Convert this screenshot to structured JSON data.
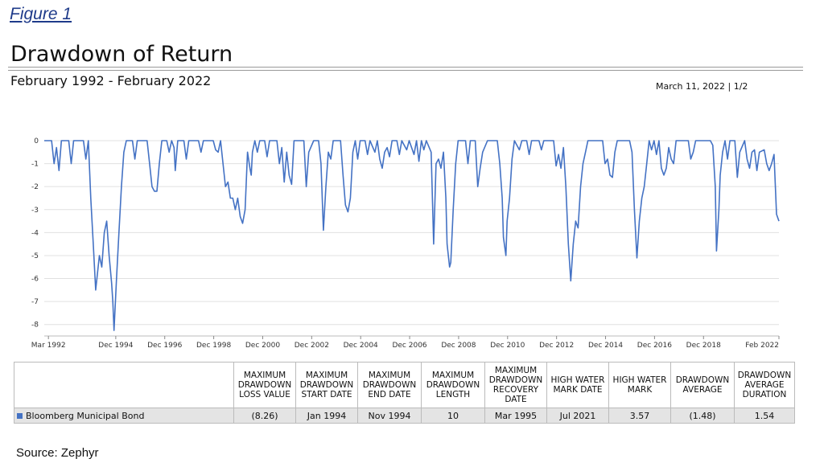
{
  "figure_label": "Figure 1",
  "title": "Drawdown of Return",
  "subtitle": "February 1992 - February 2022",
  "report_date": "March 11, 2022 | 1/2",
  "source": "Source: Zephyr",
  "colors": {
    "series": "#4472c4",
    "grid": "#e0e0e0"
  },
  "chart_data": {
    "type": "line",
    "title": "Drawdown of Return",
    "subtitle": "February 1992 - February 2022",
    "xlabel": "",
    "ylabel": "",
    "xlim": [
      1992.0,
      2022.0
    ],
    "ylim": [
      -8.5,
      0
    ],
    "y_ticks": [
      0,
      -1,
      -2,
      -3,
      -4,
      -5,
      -6,
      -7,
      -8
    ],
    "x_tick_labels": [
      {
        "x": 1992.17,
        "label": "Mar 1992"
      },
      {
        "x": 1994.92,
        "label": "Dec 1994"
      },
      {
        "x": 1996.92,
        "label": "Dec 1996"
      },
      {
        "x": 1998.92,
        "label": "Dec 1998"
      },
      {
        "x": 2000.92,
        "label": "Dec 2000"
      },
      {
        "x": 2002.92,
        "label": "Dec 2002"
      },
      {
        "x": 2004.92,
        "label": "Dec 2004"
      },
      {
        "x": 2006.92,
        "label": "Dec 2006"
      },
      {
        "x": 2008.92,
        "label": "Dec 2008"
      },
      {
        "x": 2010.92,
        "label": "Dec 2010"
      },
      {
        "x": 2012.92,
        "label": "Dec 2012"
      },
      {
        "x": 2014.92,
        "label": "Dec 2014"
      },
      {
        "x": 2016.92,
        "label": "Dec 2016"
      },
      {
        "x": 2018.92,
        "label": "Dec 2018"
      },
      {
        "x": 2022.0,
        "label": "Feb 2022"
      }
    ],
    "grid": true,
    "series": [
      {
        "name": "Bloomberg Municipal Bond",
        "points": [
          [
            1992.0,
            0
          ],
          [
            1992.3,
            0
          ],
          [
            1992.4,
            -1.0
          ],
          [
            1992.5,
            -0.3
          ],
          [
            1992.6,
            -1.3
          ],
          [
            1992.7,
            0
          ],
          [
            1993.0,
            0
          ],
          [
            1993.1,
            -1.0
          ],
          [
            1993.2,
            0
          ],
          [
            1993.6,
            0
          ],
          [
            1993.7,
            -0.8
          ],
          [
            1993.8,
            0
          ],
          [
            1993.9,
            -2.5
          ],
          [
            1994.0,
            -4.5
          ],
          [
            1994.1,
            -6.5
          ],
          [
            1994.25,
            -5.0
          ],
          [
            1994.35,
            -5.5
          ],
          [
            1994.45,
            -4.0
          ],
          [
            1994.55,
            -3.5
          ],
          [
            1994.65,
            -5.0
          ],
          [
            1994.75,
            -6.2
          ],
          [
            1994.8,
            -7.0
          ],
          [
            1994.85,
            -8.26
          ],
          [
            1994.95,
            -6.0
          ],
          [
            1995.05,
            -4.0
          ],
          [
            1995.15,
            -2.0
          ],
          [
            1995.25,
            -0.5
          ],
          [
            1995.35,
            0
          ],
          [
            1995.6,
            0
          ],
          [
            1995.7,
            -0.8
          ],
          [
            1995.8,
            0
          ],
          [
            1996.2,
            0
          ],
          [
            1996.3,
            -1.0
          ],
          [
            1996.4,
            -2.0
          ],
          [
            1996.5,
            -2.2
          ],
          [
            1996.6,
            -2.2
          ],
          [
            1996.7,
            -1.0
          ],
          [
            1996.8,
            0
          ],
          [
            1997.0,
            0
          ],
          [
            1997.1,
            -0.5
          ],
          [
            1997.2,
            0
          ],
          [
            1997.3,
            -0.3
          ],
          [
            1997.35,
            -1.3
          ],
          [
            1997.45,
            0
          ],
          [
            1997.7,
            0
          ],
          [
            1997.8,
            -0.8
          ],
          [
            1997.9,
            0
          ],
          [
            1998.3,
            0
          ],
          [
            1998.4,
            -0.5
          ],
          [
            1998.5,
            0
          ],
          [
            1998.9,
            0
          ],
          [
            1999.0,
            -0.4
          ],
          [
            1999.1,
            -0.5
          ],
          [
            1999.2,
            0
          ],
          [
            1999.4,
            -2.0
          ],
          [
            1999.5,
            -1.8
          ],
          [
            1999.6,
            -2.5
          ],
          [
            1999.7,
            -2.5
          ],
          [
            1999.8,
            -3.0
          ],
          [
            1999.9,
            -2.5
          ],
          [
            2000.0,
            -3.3
          ],
          [
            2000.1,
            -3.6
          ],
          [
            2000.2,
            -3.0
          ],
          [
            2000.3,
            -0.5
          ],
          [
            2000.4,
            -1.2
          ],
          [
            2000.45,
            -1.5
          ],
          [
            2000.5,
            -0.5
          ],
          [
            2000.6,
            0
          ],
          [
            2000.7,
            -0.5
          ],
          [
            2000.8,
            0
          ],
          [
            2001.0,
            0
          ],
          [
            2001.1,
            -0.7
          ],
          [
            2001.2,
            0
          ],
          [
            2001.5,
            0
          ],
          [
            2001.6,
            -1.0
          ],
          [
            2001.7,
            -0.3
          ],
          [
            2001.8,
            -1.8
          ],
          [
            2001.9,
            -0.5
          ],
          [
            2002.0,
            -1.5
          ],
          [
            2002.1,
            -1.9
          ],
          [
            2002.2,
            0
          ],
          [
            2002.6,
            0
          ],
          [
            2002.7,
            -2.0
          ],
          [
            2002.8,
            -0.5
          ],
          [
            2003.0,
            0
          ],
          [
            2003.2,
            0
          ],
          [
            2003.3,
            -1.0
          ],
          [
            2003.4,
            -3.9
          ],
          [
            2003.5,
            -2.0
          ],
          [
            2003.6,
            -0.5
          ],
          [
            2003.7,
            -0.8
          ],
          [
            2003.8,
            0
          ],
          [
            2004.1,
            0
          ],
          [
            2004.2,
            -1.5
          ],
          [
            2004.3,
            -2.8
          ],
          [
            2004.4,
            -3.1
          ],
          [
            2004.5,
            -2.5
          ],
          [
            2004.6,
            -0.5
          ],
          [
            2004.7,
            0
          ],
          [
            2004.8,
            -0.8
          ],
          [
            2004.9,
            0
          ],
          [
            2005.1,
            0
          ],
          [
            2005.2,
            -0.6
          ],
          [
            2005.3,
            0
          ],
          [
            2005.5,
            -0.5
          ],
          [
            2005.6,
            0
          ],
          [
            2005.7,
            -0.8
          ],
          [
            2005.8,
            -1.2
          ],
          [
            2005.9,
            -0.5
          ],
          [
            2006.0,
            -0.3
          ],
          [
            2006.1,
            -0.7
          ],
          [
            2006.2,
            0
          ],
          [
            2006.4,
            0
          ],
          [
            2006.5,
            -0.6
          ],
          [
            2006.6,
            0
          ],
          [
            2006.8,
            -0.4
          ],
          [
            2006.9,
            0
          ],
          [
            2007.1,
            -0.6
          ],
          [
            2007.2,
            0
          ],
          [
            2007.3,
            -0.9
          ],
          [
            2007.4,
            0
          ],
          [
            2007.5,
            -0.4
          ],
          [
            2007.6,
            0
          ],
          [
            2007.8,
            -0.5
          ],
          [
            2007.9,
            -4.5
          ],
          [
            2008.0,
            -1.0
          ],
          [
            2008.1,
            -0.8
          ],
          [
            2008.2,
            -1.2
          ],
          [
            2008.3,
            -0.5
          ],
          [
            2008.4,
            -2.5
          ],
          [
            2008.45,
            -4.5
          ],
          [
            2008.55,
            -5.5
          ],
          [
            2008.6,
            -5.3
          ],
          [
            2008.7,
            -3.0
          ],
          [
            2008.8,
            -1.0
          ],
          [
            2008.9,
            0
          ],
          [
            2009.2,
            0
          ],
          [
            2009.3,
            -1.0
          ],
          [
            2009.4,
            0
          ],
          [
            2009.6,
            0
          ],
          [
            2009.7,
            -2.0
          ],
          [
            2009.8,
            -1.2
          ],
          [
            2009.9,
            -0.5
          ],
          [
            2010.1,
            0
          ],
          [
            2010.5,
            0
          ],
          [
            2010.6,
            -1.0
          ],
          [
            2010.7,
            -2.5
          ],
          [
            2010.75,
            -4.2
          ],
          [
            2010.85,
            -5.0
          ],
          [
            2010.9,
            -3.5
          ],
          [
            2011.0,
            -2.5
          ],
          [
            2011.1,
            -0.8
          ],
          [
            2011.2,
            0
          ],
          [
            2011.4,
            -0.4
          ],
          [
            2011.5,
            0
          ],
          [
            2011.7,
            0
          ],
          [
            2011.8,
            -0.6
          ],
          [
            2011.9,
            0
          ],
          [
            2012.2,
            0
          ],
          [
            2012.3,
            -0.4
          ],
          [
            2012.4,
            0
          ],
          [
            2012.8,
            0
          ],
          [
            2012.9,
            -1.1
          ],
          [
            2013.0,
            -0.6
          ],
          [
            2013.1,
            -1.2
          ],
          [
            2013.2,
            -0.3
          ],
          [
            2013.3,
            -2.0
          ],
          [
            2013.4,
            -4.5
          ],
          [
            2013.5,
            -6.1
          ],
          [
            2013.6,
            -4.5
          ],
          [
            2013.7,
            -3.5
          ],
          [
            2013.8,
            -3.8
          ],
          [
            2013.9,
            -2.0
          ],
          [
            2014.0,
            -1.0
          ],
          [
            2014.1,
            -0.5
          ],
          [
            2014.2,
            0
          ],
          [
            2014.8,
            0
          ],
          [
            2014.9,
            -1.0
          ],
          [
            2015.0,
            -0.8
          ],
          [
            2015.1,
            -1.5
          ],
          [
            2015.2,
            -1.6
          ],
          [
            2015.3,
            -0.5
          ],
          [
            2015.4,
            0
          ],
          [
            2015.9,
            0
          ],
          [
            2016.0,
            -0.5
          ],
          [
            2016.1,
            -3.0
          ],
          [
            2016.2,
            -5.1
          ],
          [
            2016.3,
            -3.5
          ],
          [
            2016.4,
            -2.5
          ],
          [
            2016.5,
            -2.0
          ],
          [
            2016.6,
            -1.0
          ],
          [
            2016.7,
            0
          ],
          [
            2016.8,
            -0.4
          ],
          [
            2016.9,
            0
          ],
          [
            2017.0,
            -0.6
          ],
          [
            2017.1,
            0
          ],
          [
            2017.2,
            -1.2
          ],
          [
            2017.3,
            -1.5
          ],
          [
            2017.4,
            -1.2
          ],
          [
            2017.5,
            -0.3
          ],
          [
            2017.6,
            -0.8
          ],
          [
            2017.7,
            -1.0
          ],
          [
            2017.8,
            0
          ],
          [
            2018.3,
            0
          ],
          [
            2018.4,
            -0.8
          ],
          [
            2018.5,
            -0.5
          ],
          [
            2018.6,
            0
          ],
          [
            2019.2,
            0
          ],
          [
            2019.3,
            -0.2
          ],
          [
            2019.4,
            -2.0
          ],
          [
            2019.45,
            -4.8
          ],
          [
            2019.55,
            -3.0
          ],
          [
            2019.6,
            -1.5
          ],
          [
            2019.7,
            -0.5
          ],
          [
            2019.8,
            0
          ],
          [
            2019.9,
            -0.8
          ],
          [
            2020.0,
            0
          ],
          [
            2020.2,
            0
          ],
          [
            2020.3,
            -1.6
          ],
          [
            2020.4,
            -0.5
          ],
          [
            2020.6,
            0
          ],
          [
            2020.7,
            -0.8
          ],
          [
            2020.8,
            -1.2
          ],
          [
            2020.9,
            -0.5
          ],
          [
            2021.0,
            -0.4
          ],
          [
            2021.1,
            -1.3
          ],
          [
            2021.2,
            -0.5
          ],
          [
            2021.4,
            -0.4
          ],
          [
            2021.5,
            -1.0
          ],
          [
            2021.6,
            -1.3
          ],
          [
            2021.7,
            -1.0
          ],
          [
            2021.8,
            -0.6
          ],
          [
            2021.9,
            -3.2
          ],
          [
            2022.0,
            -3.5
          ]
        ]
      }
    ]
  },
  "table": {
    "headers": [
      "MAXIMUM DRAWDOWN LOSS VALUE",
      "MAXIMUM DRAWDOWN START DATE",
      "MAXIMUM DRAWDOWN END DATE",
      "MAXIMUM DRAWDOWN LENGTH",
      "MAXIMUM DRAWDOWN RECOVERY DATE",
      "HIGH WATER MARK DATE",
      "HIGH WATER MARK",
      "DRAWDOWN AVERAGE",
      "DRAWDOWN AVERAGE DURATION"
    ],
    "rows": [
      {
        "name": "Bloomberg Municipal Bond",
        "values": [
          "(8.26)",
          "Jan 1994",
          "Nov 1994",
          "10",
          "Mar 1995",
          "Jul 2021",
          "3.57",
          "(1.48)",
          "1.54"
        ]
      }
    ]
  }
}
